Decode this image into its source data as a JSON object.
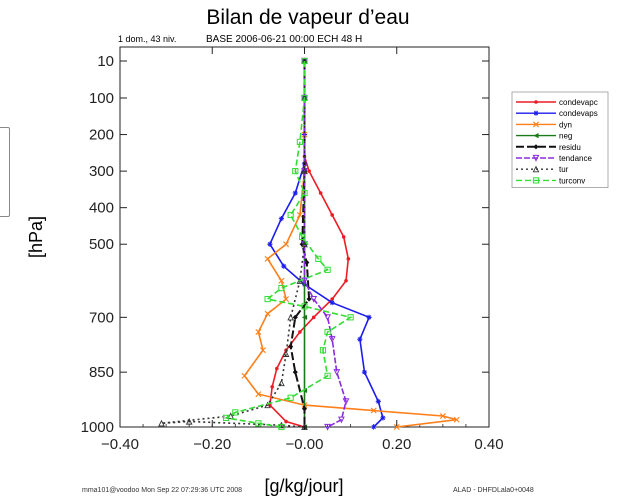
{
  "chart_data": {
    "type": "line",
    "title": "Bilan de vapeur d’eau",
    "subtitle_left": "1 dom., 43 niv.",
    "subtitle_right": "BASE 2006-06-21 00:00 ECH 48 H",
    "xlabel": "[g/kg/jour]",
    "ylabel": "[hPa]",
    "xlim": [
      -0.4,
      0.4
    ],
    "ylim": [
      1000,
      10
    ],
    "x_ticks": [
      "−0.40",
      "−0.20",
      "−0.00",
      "0.20",
      "0.40"
    ],
    "y_ticks": [
      "10",
      "100",
      "200",
      "300",
      "400",
      "500",
      "700",
      "850",
      "1000"
    ],
    "footer_left": "mma101@voodoo Mon Sep 22 07:29:36 UTC 2008",
    "footer_right": "ALAD - DHFDLala0+0048",
    "legend_position": "right",
    "series": [
      {
        "name": "condevapc",
        "color": "#ee1c25",
        "marker": "dot",
        "dash": "",
        "points": [
          [
            0.0,
            10
          ],
          [
            0.0,
            100
          ],
          [
            0.0,
            200
          ],
          [
            0.0,
            260
          ],
          [
            0.01,
            300
          ],
          [
            0.035,
            360
          ],
          [
            0.06,
            420
          ],
          [
            0.085,
            480
          ],
          [
            0.095,
            540
          ],
          [
            0.09,
            600
          ],
          [
            0.06,
            650
          ],
          [
            0.02,
            700
          ],
          [
            -0.01,
            740
          ],
          [
            -0.04,
            790
          ],
          [
            -0.06,
            840
          ],
          [
            -0.07,
            890
          ],
          [
            -0.075,
            940
          ],
          [
            -0.04,
            985
          ],
          [
            0.0,
            1000
          ]
        ]
      },
      {
        "name": "condevaps",
        "color": "#1c1cee",
        "marker": "star",
        "dash": "",
        "points": [
          [
            0.0,
            10
          ],
          [
            0.0,
            100
          ],
          [
            0.0,
            200
          ],
          [
            0.0,
            280
          ],
          [
            -0.02,
            360
          ],
          [
            -0.05,
            430
          ],
          [
            -0.075,
            500
          ],
          [
            -0.045,
            560
          ],
          [
            0.0,
            610
          ],
          [
            0.06,
            660
          ],
          [
            0.14,
            700
          ],
          [
            0.12,
            760
          ],
          [
            0.13,
            850
          ],
          [
            0.16,
            930
          ],
          [
            0.17,
            975
          ],
          [
            0.15,
            1000
          ]
        ]
      },
      {
        "name": "dyn",
        "color": "#ff7f1a",
        "marker": "x",
        "dash": "",
        "points": [
          [
            0.0,
            10
          ],
          [
            0.0,
            100
          ],
          [
            0.0,
            200
          ],
          [
            0.0,
            300
          ],
          [
            -0.01,
            420
          ],
          [
            -0.04,
            500
          ],
          [
            -0.08,
            540
          ],
          [
            -0.05,
            600
          ],
          [
            -0.04,
            650
          ],
          [
            -0.08,
            690
          ],
          [
            -0.1,
            740
          ],
          [
            -0.09,
            790
          ],
          [
            -0.13,
            860
          ],
          [
            -0.1,
            910
          ],
          [
            0.0,
            940
          ],
          [
            0.15,
            955
          ],
          [
            0.3,
            970
          ],
          [
            0.33,
            980
          ],
          [
            0.2,
            1000
          ]
        ]
      },
      {
        "name": "neg",
        "color": "#1a7a1a",
        "marker": "triangle",
        "dash": "",
        "points": [
          [
            0.0,
            10
          ],
          [
            0.0,
            100
          ],
          [
            0.0,
            300
          ],
          [
            0.0,
            500
          ],
          [
            0.0,
            700
          ],
          [
            0.0,
            900
          ],
          [
            0.0,
            1000
          ]
        ]
      },
      {
        "name": "residu",
        "color": "#111111",
        "marker": "diamond",
        "dash": "8,3",
        "points": [
          [
            0.0,
            10
          ],
          [
            0.0,
            100
          ],
          [
            0.0,
            300
          ],
          [
            -0.005,
            500
          ],
          [
            0.005,
            550
          ],
          [
            0.01,
            650
          ],
          [
            -0.02,
            700
          ],
          [
            -0.03,
            780
          ],
          [
            -0.02,
            850
          ],
          [
            0.0,
            950
          ],
          [
            0.0,
            1000
          ]
        ]
      },
      {
        "name": "tendance",
        "color": "#8a2be2",
        "marker": "triangle-down",
        "dash": "6,2",
        "points": [
          [
            0.0,
            10
          ],
          [
            0.0,
            100
          ],
          [
            0.0,
            300
          ],
          [
            0.0,
            500
          ],
          [
            0.0,
            600
          ],
          [
            0.02,
            650
          ],
          [
            0.05,
            700
          ],
          [
            0.06,
            760
          ],
          [
            0.07,
            850
          ],
          [
            0.09,
            930
          ],
          [
            0.08,
            980
          ],
          [
            0.05,
            1000
          ]
        ]
      },
      {
        "name": "tur",
        "color": "#333333",
        "marker": "triangle-open",
        "dash": "2,3",
        "points": [
          [
            0.0,
            10
          ],
          [
            0.0,
            100
          ],
          [
            0.0,
            300
          ],
          [
            0.0,
            500
          ],
          [
            -0.01,
            600
          ],
          [
            -0.03,
            700
          ],
          [
            -0.04,
            800
          ],
          [
            -0.05,
            880
          ],
          [
            -0.08,
            940
          ],
          [
            -0.16,
            970
          ],
          [
            -0.31,
            990
          ],
          [
            -0.25,
            985
          ],
          [
            -0.05,
            995
          ],
          [
            0.0,
            1000
          ]
        ]
      },
      {
        "name": "turconv",
        "color": "#33dd33",
        "marker": "square",
        "dash": "6,3",
        "points": [
          [
            0.0,
            10
          ],
          [
            0.0,
            100
          ],
          [
            -0.01,
            220
          ],
          [
            -0.02,
            300
          ],
          [
            0.0,
            360
          ],
          [
            -0.03,
            420
          ],
          [
            -0.005,
            480
          ],
          [
            0.03,
            540
          ],
          [
            0.05,
            570
          ],
          [
            -0.05,
            620
          ],
          [
            -0.08,
            650
          ],
          [
            0.0,
            670
          ],
          [
            0.1,
            700
          ],
          [
            0.05,
            740
          ],
          [
            0.04,
            790
          ],
          [
            0.05,
            860
          ],
          [
            -0.03,
            920
          ],
          [
            -0.15,
            960
          ],
          [
            -0.17,
            975
          ],
          [
            -0.1,
            990
          ],
          [
            -0.05,
            1000
          ]
        ]
      }
    ]
  }
}
